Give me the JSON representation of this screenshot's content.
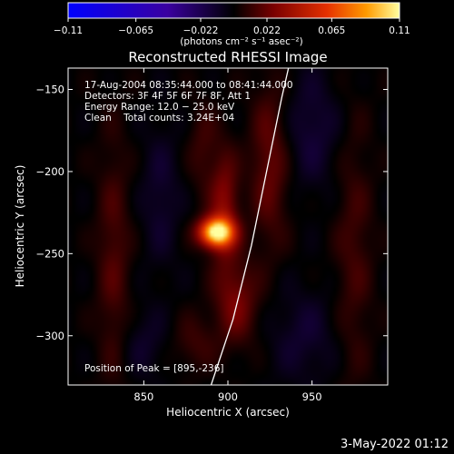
{
  "chart_data": {
    "type": "heatmap",
    "title": "Reconstructed RHESSI Image",
    "xlabel": "Heliocentric X (arcsec)",
    "ylabel": "Heliocentric Y (arcsec)",
    "xlim": [
      805,
      995
    ],
    "ylim": [
      -330,
      -137
    ],
    "x_ticks": [
      850,
      900,
      950
    ],
    "y_ticks": [
      -150,
      -200,
      -250,
      -300
    ],
    "x_tick_labels": [
      "850",
      "900",
      "950"
    ],
    "y_tick_labels": [
      "−150",
      "−200",
      "−250",
      "−300"
    ],
    "colorbar": {
      "min": -0.11,
      "max": 0.11,
      "ticks": [
        -0.11,
        -0.065,
        -0.022,
        0.022,
        0.065,
        0.11
      ],
      "tick_labels": [
        "−0.11",
        "−0.065",
        "−0.022",
        "0.022",
        "0.065",
        "0.11"
      ],
      "units": "(photons cm⁻² s⁻¹ asec⁻²)",
      "colors": [
        "#0000ff",
        "#3a00a0",
        "#000000",
        "#7a0000",
        "#e53000",
        "#ff9a00",
        "#ffffa0"
      ]
    },
    "annotations": {
      "time_range": "17-Aug-2004 08:35:44.000 to 08:41:44.000",
      "detectors": "Detectors: 3F 4F 5F 6F 7F 8F, Att 1",
      "energy_range": "Energy Range: 12.0 − 25.0 keV",
      "method": "Clean    Total counts: 3.24E+04",
      "peak": "Position of Peak = [895,-236]"
    },
    "peak": {
      "x": 895,
      "y": -236
    },
    "sources": [
      {
        "x": 893,
        "y": -237,
        "sx": 7,
        "sy": 6,
        "amp": 0.11
      },
      {
        "x": 898,
        "y": -222,
        "sx": 6,
        "sy": 24,
        "amp": 0.03
      },
      {
        "x": 905,
        "y": -280,
        "sx": 9,
        "sy": 18,
        "amp": 0.025
      },
      {
        "x": 925,
        "y": -195,
        "sx": 8,
        "sy": 35,
        "amp": 0.022
      },
      {
        "x": 832,
        "y": -255,
        "sx": 7,
        "sy": 55,
        "amp": 0.016
      },
      {
        "x": 975,
        "y": -250,
        "sx": 8,
        "sy": 60,
        "amp": 0.013
      },
      {
        "x": 885,
        "y": -185,
        "sx": 6,
        "sy": 20,
        "amp": 0.012
      },
      {
        "x": 880,
        "y": -305,
        "sx": 9,
        "sy": 12,
        "amp": 0.012
      },
      {
        "x": 860,
        "y": -215,
        "sx": 8,
        "sy": 30,
        "amp": -0.012
      },
      {
        "x": 950,
        "y": -175,
        "sx": 12,
        "sy": 25,
        "amp": -0.014
      },
      {
        "x": 945,
        "y": -300,
        "sx": 14,
        "sy": 20,
        "amp": -0.012
      },
      {
        "x": 850,
        "y": -305,
        "sx": 10,
        "sy": 15,
        "amp": -0.01
      }
    ],
    "limb": [
      {
        "x": 890,
        "y": -330
      },
      {
        "x": 903,
        "y": -290
      },
      {
        "x": 914,
        "y": -245
      },
      {
        "x": 923,
        "y": -200
      },
      {
        "x": 932,
        "y": -155
      },
      {
        "x": 936,
        "y": -137
      }
    ]
  },
  "footer": {
    "date": "3-May-2022 01:12"
  }
}
